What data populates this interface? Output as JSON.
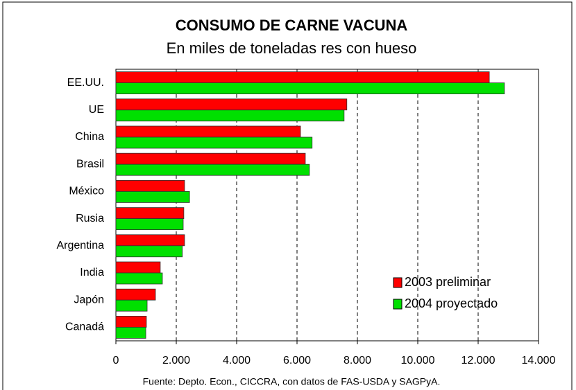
{
  "chart_data": {
    "type": "bar",
    "orientation": "horizontal",
    "title": "CONSUMO DE CARNE VACUNA",
    "subtitle": "En miles de toneladas res con hueso",
    "source": "Fuente: Depto. Econ., CICCRA, con datos de FAS-USDA y SAGPyA.",
    "categories": [
      "EE.UU.",
      "UE",
      "China",
      "Brasil",
      "México",
      "Rusia",
      "Argentina",
      "India",
      "Japón",
      "Canadá"
    ],
    "series": [
      {
        "name": "2003 preliminar",
        "color": "#ff0000",
        "values": [
          12370,
          7650,
          6115,
          6275,
          2275,
          2250,
          2275,
          1470,
          1310,
          1010
        ]
      },
      {
        "name": "2004 proyectado",
        "color": "#00e000",
        "values": [
          12870,
          7560,
          6500,
          6410,
          2440,
          2230,
          2200,
          1540,
          1035,
          990
        ]
      }
    ],
    "xlim": [
      0,
      14000
    ],
    "xticks": [
      0,
      {
        "value": 2000,
        "label": "2.000"
      },
      {
        "value": 4000,
        "label": "4.000"
      },
      {
        "value": 6000,
        "label": "6.000"
      },
      {
        "value": 8000,
        "label": "8.000"
      },
      {
        "value": 10000,
        "label": "10.000"
      },
      {
        "value": 12000,
        "label": "12.000"
      },
      {
        "value": 14000,
        "label": "14.000"
      }
    ],
    "grid": true,
    "legend": "lower right"
  }
}
